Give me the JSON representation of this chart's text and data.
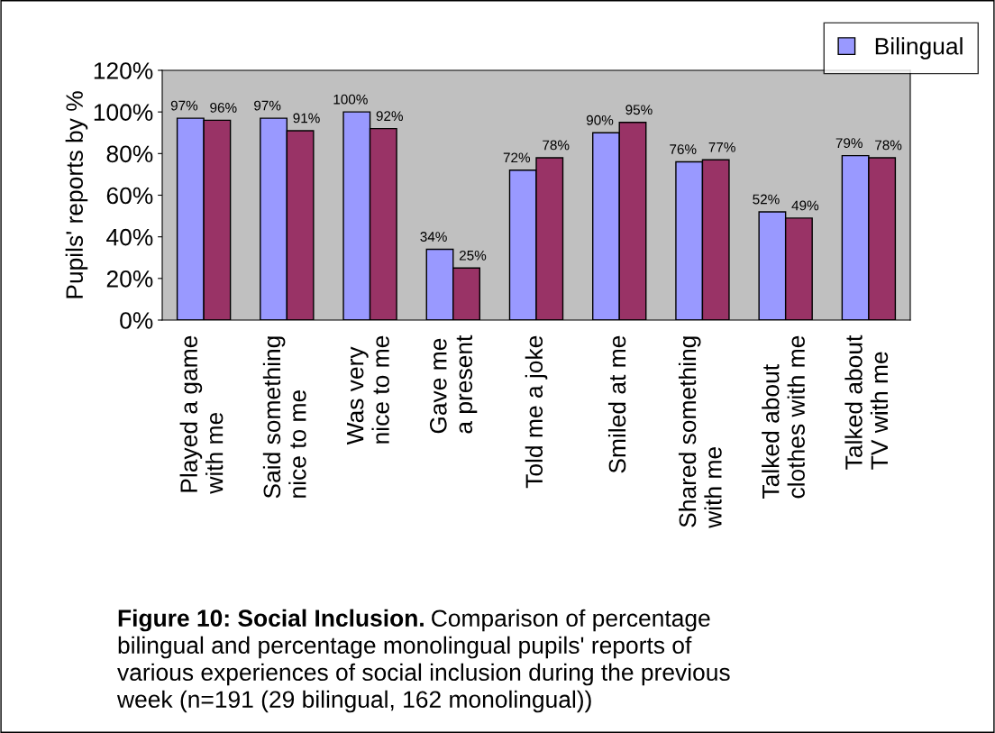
{
  "chart_data": {
    "type": "bar",
    "ylabel": "Pupils' reports by %",
    "categories": [
      "Played a game\nwith me",
      "Said something\nnice to me",
      "Was very\nnice to me",
      "Gave me\na present",
      "Told me a joke",
      "Smiled at me",
      "Shared something\nwith me",
      "Talked about\nclothes with me",
      "Talked about\nTV with me"
    ],
    "series": [
      {
        "name": "Bilingual",
        "color": "#9999ff",
        "values": [
          97,
          97,
          100,
          34,
          72,
          90,
          76,
          52,
          79
        ],
        "value_labels": [
          "97%",
          "97%",
          "100%",
          "34%",
          "72%",
          "90%",
          "76%",
          "52%",
          "79%"
        ]
      },
      {
        "color": "#993366",
        "values": [
          96,
          91,
          92,
          25,
          78,
          95,
          77,
          49,
          78
        ],
        "value_labels": [
          "96%",
          "91%",
          "92%",
          "25%",
          "78%",
          "95%",
          "77%",
          "49%",
          "78%"
        ]
      }
    ],
    "ylim": [
      0,
      120
    ],
    "yticks": [
      {
        "value": 0,
        "label": "0%"
      },
      {
        "value": 20,
        "label": "20%"
      },
      {
        "value": 40,
        "label": "40%"
      },
      {
        "value": 60,
        "label": "60%"
      },
      {
        "value": 80,
        "label": "80%"
      },
      {
        "value": 100,
        "label": "100%"
      },
      {
        "value": 120,
        "label": "120%"
      }
    ],
    "grid": false,
    "legend": "top right",
    "annotations": [
      "Figure 10: Social Inclusion.",
      "Comparison of percentage\nbilingual and percentage monolingual pupils' reports of\nvarious experiences of social inclusion during the previous\nweek (n=191 (29 bilingual, 162 monolingual))"
    ]
  }
}
